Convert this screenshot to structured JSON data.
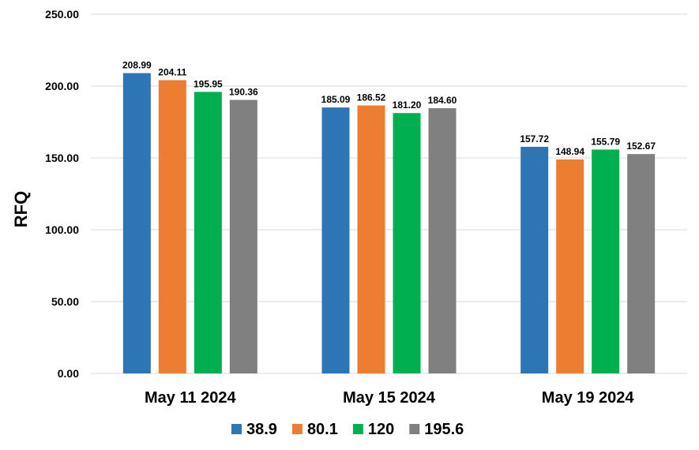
{
  "chart_data": {
    "type": "bar",
    "categories": [
      "May 11 2024",
      "May 15 2024",
      "May 19 2024"
    ],
    "series": [
      {
        "name": "38.9",
        "color": "#2E75B6",
        "values": [
          208.99,
          185.09,
          157.72
        ],
        "labels": [
          "208.99",
          "185.09",
          "157.72"
        ]
      },
      {
        "name": "80.1",
        "color": "#ED7D31",
        "values": [
          204.11,
          186.52,
          148.94
        ],
        "labels": [
          "204.11",
          "186.52",
          "148.94"
        ]
      },
      {
        "name": "120",
        "color": "#00B050",
        "values": [
          195.95,
          181.2,
          155.79
        ],
        "labels": [
          "195.95",
          "181.20",
          "155.79"
        ]
      },
      {
        "name": "195.6",
        "color": "#808080",
        "values": [
          190.36,
          184.6,
          152.67
        ],
        "labels": [
          "190.36",
          "184.60",
          "152.67"
        ]
      }
    ],
    "ylabel": "RFQ",
    "xlabel": "",
    "ylim": [
      0,
      250
    ],
    "yticks": [
      "0.00",
      "50.00",
      "100.00",
      "150.00",
      "200.00",
      "250.00"
    ],
    "grid": true,
    "legend_position": "bottom"
  }
}
